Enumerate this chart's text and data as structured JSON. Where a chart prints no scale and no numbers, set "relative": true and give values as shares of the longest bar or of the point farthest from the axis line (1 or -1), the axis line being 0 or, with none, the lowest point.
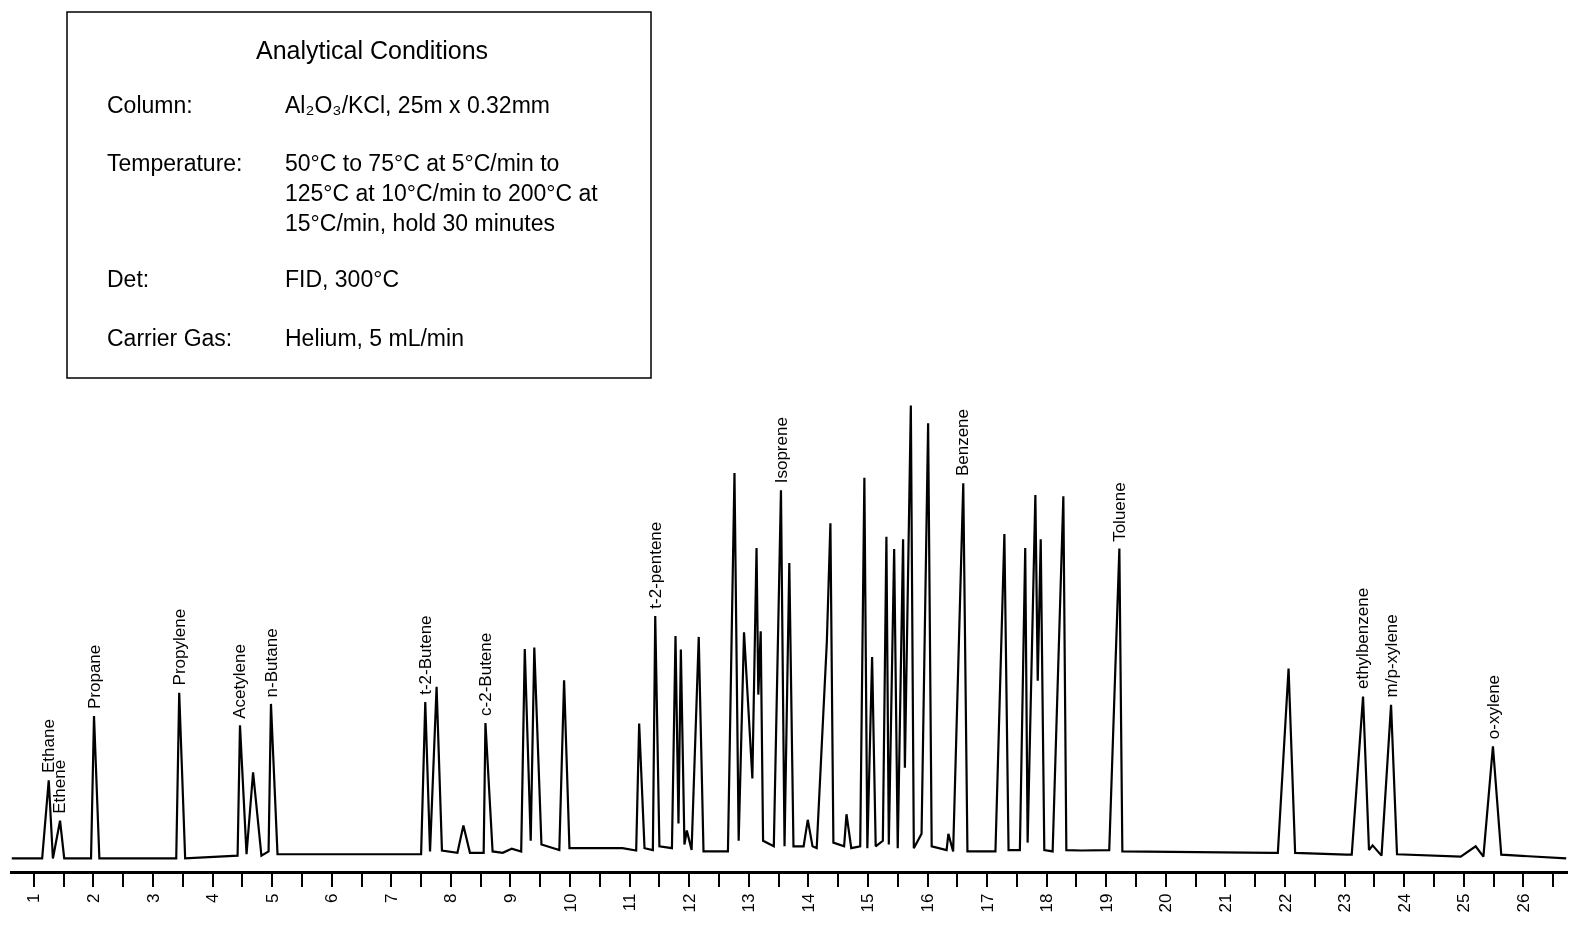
{
  "chart_data": {
    "type": "line",
    "relative": true,
    "color": "#000000",
    "tick_labels": "x",
    "legend": false,
    "x": [
      0.63,
      1.14,
      1.25,
      1.32,
      1.44,
      1.51,
      1.96,
      2.01,
      2.1,
      3.39,
      3.44,
      3.54,
      4.42,
      4.46,
      4.57,
      4.68,
      4.82,
      4.94,
      4.98,
      5.09,
      7.5,
      7.57,
      7.65,
      7.76,
      7.85,
      8.11,
      8.21,
      8.32,
      8.55,
      8.58,
      8.7,
      8.87,
      9.02,
      9.18,
      9.24,
      9.34,
      9.4,
      9.52,
      9.82,
      9.9,
      9.99,
      10.88,
      11.11,
      11.16,
      11.25,
      11.39,
      11.43,
      11.5,
      11.71,
      11.77,
      11.82,
      11.86,
      11.92,
      11.96,
      12.04,
      12.16,
      12.24,
      12.65,
      12.76,
      12.83,
      12.92,
      13.06,
      13.13,
      13.16,
      13.2,
      13.24,
      13.42,
      13.54,
      13.6,
      13.68,
      13.75,
      13.92,
      13.99,
      14.07,
      14.14,
      14.31,
      14.37,
      14.42,
      14.6,
      14.64,
      14.72,
      14.87,
      14.94,
      14.99,
      15.07,
      15.13,
      15.25,
      15.31,
      15.35,
      15.44,
      15.5,
      15.59,
      15.62,
      15.72,
      15.77,
      15.9,
      16.01,
      16.07,
      16.32,
      16.35,
      16.43,
      16.6,
      16.67,
      17.14,
      17.29,
      17.36,
      17.55,
      17.64,
      17.68,
      17.81,
      17.85,
      17.9,
      17.96,
      18.1,
      18.28,
      18.33,
      18.58,
      19.05,
      19.22,
      19.27,
      21.88,
      22.06,
      22.17,
      23.03,
      23.12,
      23.31,
      23.41,
      23.47,
      23.62,
      23.78,
      23.88,
      24.95,
      25.2,
      25.33,
      25.49,
      25.63,
      26.72
    ],
    "values": [
      0.027,
      0.027,
      0.195,
      0.027,
      0.108,
      0.027,
      0.027,
      0.333,
      0.027,
      0.027,
      0.383,
      0.027,
      0.033,
      0.313,
      0.036,
      0.212,
      0.033,
      0.042,
      0.359,
      0.036,
      0.036,
      0.363,
      0.042,
      0.396,
      0.044,
      0.039,
      0.098,
      0.039,
      0.039,
      0.318,
      0.042,
      0.039,
      0.048,
      0.042,
      0.477,
      0.065,
      0.48,
      0.057,
      0.045,
      0.41,
      0.049,
      0.049,
      0.044,
      0.317,
      0.049,
      0.045,
      0.548,
      0.053,
      0.049,
      0.505,
      0.102,
      0.476,
      0.057,
      0.087,
      0.045,
      0.503,
      0.042,
      0.042,
      0.855,
      0.065,
      0.513,
      0.199,
      0.694,
      0.379,
      0.515,
      0.065,
      0.053,
      0.818,
      0.053,
      0.662,
      0.053,
      0.053,
      0.11,
      0.053,
      0.049,
      0.492,
      0.747,
      0.061,
      0.053,
      0.122,
      0.049,
      0.053,
      0.845,
      0.049,
      0.46,
      0.053,
      0.065,
      0.718,
      0.057,
      0.692,
      0.049,
      0.713,
      0.222,
      1.0,
      0.049,
      0.08,
      0.962,
      0.053,
      0.045,
      0.08,
      0.042,
      0.833,
      0.042,
      0.042,
      0.724,
      0.045,
      0.045,
      0.694,
      0.061,
      0.808,
      0.409,
      0.713,
      0.045,
      0.042,
      0.805,
      0.045,
      0.044,
      0.045,
      0.693,
      0.042,
      0.039,
      0.435,
      0.039,
      0.035,
      0.035,
      0.375,
      0.045,
      0.055,
      0.033,
      0.357,
      0.036,
      0.031,
      0.053,
      0.031,
      0.268,
      0.035,
      0.027
    ],
    "xlim": [
      0.6,
      26.75
    ],
    "xticks": [
      1,
      {
        "value": 1.5,
        "label": null
      },
      2,
      {
        "value": 2.5,
        "label": null
      },
      3,
      {
        "value": 3.5,
        "label": null
      },
      4,
      {
        "value": 4.5,
        "label": null
      },
      5,
      {
        "value": 5.5,
        "label": null
      },
      6,
      {
        "value": 6.5,
        "label": null
      },
      7,
      {
        "value": 7.5,
        "label": null
      },
      8,
      {
        "value": 8.5,
        "label": null
      },
      9,
      {
        "value": 9.5,
        "label": null
      },
      10,
      {
        "value": 10.5,
        "label": null
      },
      11,
      {
        "value": 11.5,
        "label": null
      },
      12,
      {
        "value": 12.5,
        "label": null
      },
      13,
      {
        "value": 13.5,
        "label": null
      },
      14,
      {
        "value": 14.5,
        "label": null
      },
      15,
      {
        "value": 15.5,
        "label": null
      },
      16,
      {
        "value": 16.5,
        "label": null
      },
      17,
      {
        "value": 17.5,
        "label": null
      },
      18,
      {
        "value": 18.5,
        "label": null
      },
      19,
      {
        "value": 19.5,
        "label": null
      },
      20,
      {
        "value": 20.5,
        "label": null
      },
      21,
      {
        "value": 21.5,
        "label": null
      },
      22,
      {
        "value": 22.5,
        "label": null
      },
      23,
      {
        "value": 23.5,
        "label": null
      },
      24,
      {
        "value": 24.5,
        "label": null
      },
      25,
      {
        "value": 25.5,
        "label": null
      },
      26,
      {
        "value": 26.5,
        "label": null
      }
    ],
    "annotations": [
      "Analytical Conditions",
      "Column:",
      "Al₂O₃/KCl, 25m x 0.32mm",
      "Temperature:",
      "50°C to 75°C at 5°C/min to 125°C at 10°C/min to 200°C at 15°C/min, hold 30 minutes",
      "Det:",
      "FID, 300°C",
      "Carrier Gas:",
      "Helium, 5 mL/min",
      {
        "text": "Ethane",
        "x": 1.25,
        "y": 0.195
      },
      {
        "text": "Ethene",
        "x": 1.44,
        "y": 0.108
      },
      {
        "text": "Propane",
        "x": 2.01,
        "y": 0.333
      },
      {
        "text": "Propylene",
        "x": 3.44,
        "y": 0.383
      },
      {
        "text": "Acetylene",
        "x": 4.46,
        "y": 0.313
      },
      {
        "text": "n-Butane",
        "x": 4.98,
        "y": 0.359
      },
      {
        "text": "t-2-Butene",
        "x": 7.57,
        "y": 0.363
      },
      {
        "text": "c-2-Butene",
        "x": 8.58,
        "y": 0.318
      },
      {
        "text": "t-2-pentene",
        "x": 11.43,
        "y": 0.548
      },
      {
        "text": "Isoprene",
        "x": 13.54,
        "y": 0.818
      },
      {
        "text": "Benzene",
        "x": 16.6,
        "y": 0.833
      },
      {
        "text": "Toluene",
        "x": 19.22,
        "y": 0.693
      },
      {
        "text": "ethylbenzene",
        "x": 23.31,
        "y": 0.375
      },
      {
        "text": "m/p-xylene",
        "x": 23.78,
        "y": 0.357
      },
      {
        "text": "o-xylene",
        "x": 25.49,
        "y": 0.268
      }
    ]
  }
}
